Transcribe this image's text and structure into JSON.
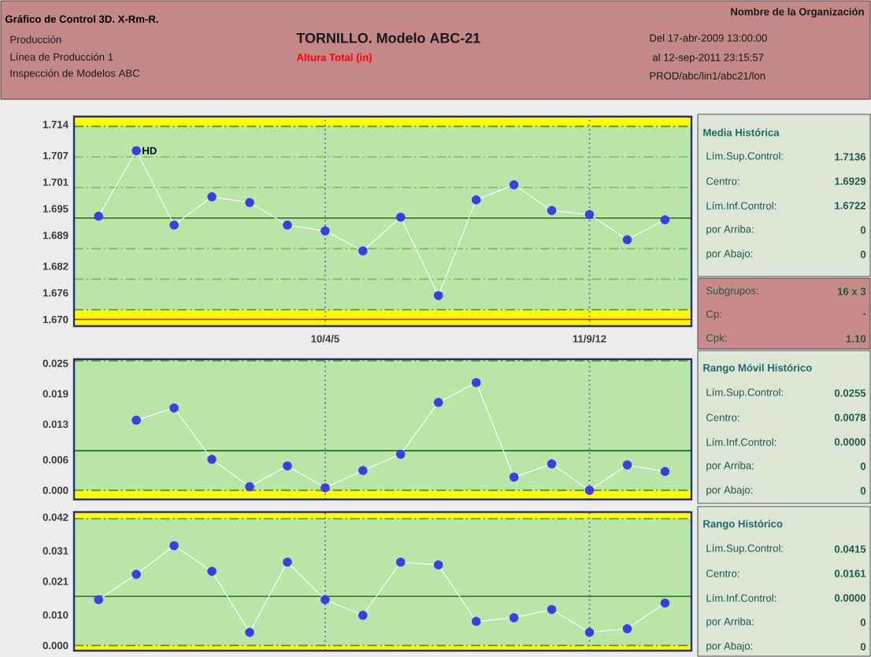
{
  "chart_data": [
    {
      "type": "other",
      "title": "Gráfico de Control 3D. X-Rm-R.",
      "annotations": [
        "Nombre de la Organización",
        "Producción",
        "Línea de Producción 1",
        "Inspección de Modelos ABC",
        "TORNILLO. Modelo ABC-21",
        "Altura Total (in)",
        "Del 17-abr-2009 13:00:00",
        "al 12-sep-2011 23:15:57",
        "PROD/abc/lin1/abc21/lon"
      ]
    },
    {
      "type": "line",
      "categories": [
        null,
        null,
        null,
        null,
        null,
        null,
        "10/4/5",
        null,
        null,
        null,
        null,
        null,
        null,
        "11/9/12",
        null,
        null
      ],
      "values": [
        1.6933,
        1.7081,
        1.6913,
        1.6977,
        1.6964,
        1.6913,
        1.69,
        1.6855,
        1.6931,
        1.6754,
        1.697,
        1.7004,
        1.6946,
        1.6937,
        1.688,
        1.6925
      ],
      "color": "#3b3bf0",
      "marker": "circle",
      "grid": "x",
      "ylim": [
        1.6685,
        1.7158
      ],
      "yticks": [
        {
          "value": 1.67,
          "label": "1.670"
        },
        1.676,
        1.682,
        1.689,
        1.695,
        1.701,
        1.707,
        1.714
      ],
      "bands": [
        {
          "axis": "y",
          "from": 1.7136,
          "to": 1.7158,
          "color": "#ffff00"
        },
        {
          "axis": "y",
          "from": 1.6685,
          "to": 1.6722,
          "color": "#ffff00"
        }
      ],
      "ref_lines": [
        {
          "axis": "y",
          "value": 1.7136,
          "color": "#4f8f2a",
          "line_style": "dashed"
        },
        {
          "axis": "y",
          "value": 1.6722,
          "color": "#4f8f2a",
          "line_style": "dashed"
        },
        {
          "axis": "y",
          "value": 1.6929,
          "color": "#1e6e1e",
          "line_style": "solid"
        },
        {
          "axis": "y",
          "value": 1.7067,
          "color": "#7cba5c",
          "line_style": "dashed"
        },
        {
          "axis": "y",
          "value": 1.6998,
          "color": "#7cba5c",
          "line_style": "dashed"
        },
        {
          "axis": "y",
          "value": 1.686,
          "color": "#7cba5c",
          "line_style": "dashed"
        },
        {
          "axis": "y",
          "value": 1.6791,
          "color": "#7cba5c",
          "line_style": "dashed"
        },
        {
          "axis": "y",
          "value": 1.67,
          "color": "#ff0000",
          "line_style": "solid"
        }
      ],
      "annotations": [
        {
          "text": "HD",
          "y": 1.7081
        }
      ]
    },
    {
      "type": "line",
      "categories": [
        null,
        null,
        null,
        null,
        null,
        null,
        null,
        null,
        null,
        null,
        null,
        null,
        null,
        null,
        null,
        null
      ],
      "values": [
        null,
        0.0138,
        0.0162,
        0.0061,
        0.0007,
        0.0048,
        0.0005,
        0.0039,
        0.0071,
        0.0173,
        0.0212,
        0.0026,
        0.0052,
        0.0,
        0.005,
        0.0037
      ],
      "color": "#3b3bf0",
      "marker": "circle",
      "grid": "x",
      "tick_labels": "y",
      "ylim": [
        -0.0018,
        0.0258
      ],
      "yticks": [
        {
          "value": 0.0,
          "label": "0.000"
        },
        0.006,
        0.013,
        0.019,
        0.025
      ],
      "bands": [
        {
          "axis": "y",
          "from": 0.0255,
          "to": 0.0258,
          "color": "#ffff00"
        },
        {
          "axis": "y",
          "from": -0.0018,
          "to": 0.0,
          "color": "#ffff00"
        }
      ],
      "ref_lines": [
        {
          "axis": "y",
          "value": 0.0255,
          "color": "#4f8f2a",
          "line_style": "dashed"
        },
        {
          "axis": "y",
          "value": 0.0078,
          "color": "#1e6e1e",
          "line_style": "solid"
        },
        {
          "axis": "y",
          "value": 0.0,
          "color": "#4f8f2a",
          "line_style": "dashed"
        }
      ]
    },
    {
      "type": "line",
      "categories": [
        null,
        null,
        null,
        null,
        null,
        null,
        null,
        null,
        null,
        null,
        null,
        null,
        null,
        null,
        null,
        null
      ],
      "values": [
        0.015,
        0.0233,
        0.0327,
        0.0243,
        0.0043,
        0.0273,
        0.015,
        0.0099,
        0.0273,
        0.0264,
        0.0079,
        0.0091,
        0.0118,
        0.0043,
        0.0055,
        0.0139
      ],
      "color": "#3b3bf0",
      "marker": "circle",
      "grid": "x",
      "tick_labels": "y",
      "ylim": [
        -0.0017,
        0.0437
      ],
      "yticks": [
        {
          "value": 0.0,
          "label": "0.000"
        },
        {
          "value": 0.01,
          "label": "0.010"
        },
        0.021,
        0.031,
        0.042
      ],
      "bands": [
        {
          "axis": "y",
          "from": 0.0415,
          "to": 0.0437,
          "color": "#ffff00"
        },
        {
          "axis": "y",
          "from": -0.0017,
          "to": 0.0,
          "color": "#ffff00"
        }
      ],
      "ref_lines": [
        {
          "axis": "y",
          "value": 0.0415,
          "color": "#4f8f2a",
          "line_style": "dashed"
        },
        {
          "axis": "y",
          "value": 0.0161,
          "color": "#1e6e1e",
          "line_style": "solid"
        },
        {
          "axis": "y",
          "value": 0.0,
          "color": "#4f8f2a",
          "line_style": "dashed"
        }
      ]
    },
    {
      "type": "other",
      "title": "Media Histórica",
      "annotations": [
        "Lím.Sup.Control:",
        "1.7136",
        "Centro:",
        "1.6929",
        "Lím.Inf.Control:",
        "1.6722",
        "por Arriba:",
        "0",
        "por Abajo:",
        "0"
      ]
    },
    {
      "type": "other",
      "annotations": [
        "Subgrupos:",
        "16 x 3",
        "Cp:",
        "-",
        "Cpk:",
        "1.10"
      ]
    },
    {
      "type": "other",
      "title": "Rango Móvil Histórico",
      "annotations": [
        "Lím.Sup.Control:",
        "0.0255",
        "Centro:",
        "0.0078",
        "Lím.Inf.Control:",
        "0.0000",
        "por Arriba:",
        "0",
        "por Abajo:",
        "0"
      ]
    },
    {
      "type": "other",
      "title": "Rango Histórico",
      "annotations": [
        "Lím.Sup.Control:",
        "0.0415",
        "Centro:",
        "0.0161",
        "Lím.Inf.Control:",
        "0.0000",
        "por Arriba:",
        "0",
        "por Abajo:",
        "0"
      ]
    }
  ]
}
